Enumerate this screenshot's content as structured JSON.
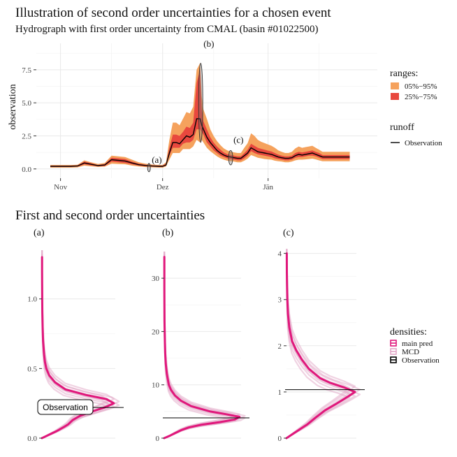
{
  "title": "Illustration of second order uncertainties for a chosen event",
  "subtitle": "Hydrograph with first order uncertainty from CMAL (basin #01022500)",
  "section_title": "First and second order uncertainties",
  "colors": {
    "q05_95": "#F5A25D",
    "q25_75": "#E8483E",
    "observation": "#000000",
    "main_pred": "#E0177B",
    "mcd": "#E2A6C6"
  },
  "chart_data": [
    {
      "type": "area",
      "name": "hydrograph",
      "ylabel": "observation",
      "xlim": [
        0,
        92
      ],
      "ylim": [
        -0.7,
        9.5
      ],
      "yticks": [
        0.0,
        2.5,
        5.0,
        7.5
      ],
      "ytick_labels": [
        "0.0",
        "2.5",
        "5.0",
        "7.5"
      ],
      "xticks": [
        {
          "x": 3,
          "label": "Nov"
        },
        {
          "x": 33,
          "label": "Dez"
        },
        {
          "x": 64,
          "label": "Jän"
        }
      ],
      "legend": {
        "ranges_title": "ranges:",
        "ranges": [
          {
            "label": "05%−95%",
            "color": "#F5A25D"
          },
          {
            "label": "25%−75%",
            "color": "#E8483E"
          }
        ],
        "runoff_title": "runoff",
        "runoff": [
          {
            "label": "Observation",
            "color": "#000000"
          }
        ]
      },
      "annotations": [
        {
          "label": "(a)",
          "x": 29.5,
          "y": 0.1
        },
        {
          "label": "(b)",
          "x": 44,
          "y": 5.2
        },
        {
          "label": "(c)",
          "x": 53,
          "y": 0.85
        }
      ],
      "series": {
        "x": [
          0,
          2,
          4,
          6,
          8,
          10,
          12,
          14,
          16,
          18,
          20,
          22,
          24,
          26,
          28,
          30,
          32,
          33,
          34,
          35,
          36,
          37,
          38,
          39,
          40,
          41,
          42,
          43,
          44,
          44.5,
          45,
          46,
          47,
          48,
          49,
          50,
          51,
          52,
          53,
          54,
          55,
          56,
          57,
          58,
          59,
          60,
          61,
          62,
          63,
          64,
          65,
          66,
          67,
          68,
          69,
          70,
          71,
          72,
          73,
          74,
          75,
          76,
          77,
          78,
          79,
          80,
          81,
          82,
          83,
          84,
          85,
          86,
          87,
          88
        ],
        "obs": [
          0.2,
          0.2,
          0.2,
          0.2,
          0.22,
          0.45,
          0.35,
          0.25,
          0.3,
          0.7,
          0.65,
          0.6,
          0.45,
          0.32,
          0.26,
          0.22,
          0.2,
          0.2,
          0.3,
          1.2,
          2.0,
          2.0,
          1.9,
          2.2,
          2.5,
          2.4,
          2.6,
          3.8,
          3.8,
          3.3,
          3.0,
          2.4,
          2.0,
          1.7,
          1.4,
          1.2,
          1.05,
          0.95,
          0.9,
          0.85,
          0.8,
          0.8,
          1.0,
          1.2,
          1.6,
          1.45,
          1.3,
          1.25,
          1.2,
          1.15,
          1.1,
          1.0,
          0.9,
          0.85,
          0.8,
          0.8,
          0.85,
          1.0,
          1.1,
          1.05,
          1.1,
          1.15,
          1.2,
          1.1,
          1.0,
          0.9,
          0.9,
          0.9,
          0.9,
          0.9,
          0.9,
          0.9,
          0.9,
          0.9
        ],
        "q25": [
          0.15,
          0.15,
          0.15,
          0.15,
          0.17,
          0.35,
          0.27,
          0.2,
          0.22,
          0.55,
          0.5,
          0.45,
          0.35,
          0.25,
          0.2,
          0.17,
          0.15,
          0.15,
          0.25,
          1.0,
          1.6,
          1.6,
          1.6,
          1.9,
          2.0,
          2.0,
          2.2,
          3.0,
          3.0,
          2.8,
          2.6,
          2.0,
          1.7,
          1.4,
          1.2,
          1.0,
          0.9,
          0.8,
          0.75,
          0.7,
          0.65,
          0.65,
          0.8,
          1.0,
          1.35,
          1.2,
          1.1,
          1.05,
          1.0,
          0.95,
          0.9,
          0.8,
          0.75,
          0.7,
          0.65,
          0.65,
          0.7,
          0.85,
          0.9,
          0.9,
          0.95,
          1.0,
          1.0,
          0.95,
          0.85,
          0.75,
          0.75,
          0.75,
          0.75,
          0.75,
          0.75,
          0.75,
          0.75,
          0.75
        ],
        "q75": [
          0.25,
          0.25,
          0.25,
          0.25,
          0.27,
          0.55,
          0.43,
          0.3,
          0.37,
          0.85,
          0.8,
          0.75,
          0.55,
          0.4,
          0.32,
          0.27,
          0.25,
          0.25,
          0.4,
          1.6,
          2.6,
          2.6,
          2.5,
          2.8,
          3.2,
          3.1,
          3.5,
          6.5,
          7.5,
          4.5,
          3.6,
          3.0,
          2.4,
          2.0,
          1.7,
          1.45,
          1.25,
          1.12,
          1.06,
          1.0,
          0.95,
          0.95,
          1.2,
          1.45,
          1.9,
          1.75,
          1.6,
          1.52,
          1.45,
          1.38,
          1.32,
          1.2,
          1.08,
          1.0,
          0.95,
          0.95,
          1.0,
          1.2,
          1.3,
          1.25,
          1.3,
          1.35,
          1.4,
          1.3,
          1.2,
          1.05,
          1.05,
          1.05,
          1.05,
          1.05,
          1.05,
          1.05,
          1.05,
          1.05
        ],
        "q05": [
          0.1,
          0.1,
          0.1,
          0.1,
          0.12,
          0.25,
          0.2,
          0.15,
          0.17,
          0.4,
          0.37,
          0.35,
          0.25,
          0.18,
          0.14,
          0.12,
          0.1,
          0.1,
          0.18,
          0.7,
          1.2,
          1.2,
          1.2,
          1.5,
          1.5,
          1.5,
          1.7,
          2.2,
          2.0,
          2.2,
          2.0,
          1.6,
          1.35,
          1.15,
          0.95,
          0.8,
          0.7,
          0.62,
          0.58,
          0.55,
          0.5,
          0.5,
          0.62,
          0.78,
          1.05,
          0.95,
          0.85,
          0.8,
          0.75,
          0.72,
          0.7,
          0.62,
          0.58,
          0.55,
          0.5,
          0.5,
          0.55,
          0.65,
          0.7,
          0.7,
          0.72,
          0.75,
          0.78,
          0.72,
          0.65,
          0.58,
          0.58,
          0.58,
          0.58,
          0.58,
          0.58,
          0.58,
          0.58,
          0.58
        ],
        "q95": [
          0.3,
          0.3,
          0.3,
          0.3,
          0.32,
          0.65,
          0.5,
          0.38,
          0.45,
          1.0,
          0.95,
          0.9,
          0.7,
          0.5,
          0.4,
          0.33,
          0.3,
          0.3,
          0.5,
          2.2,
          3.5,
          3.5,
          3.3,
          3.8,
          4.3,
          4.2,
          4.7,
          7.5,
          8.0,
          5.5,
          4.5,
          3.8,
          3.0,
          2.5,
          2.1,
          1.8,
          1.55,
          1.4,
          1.32,
          1.25,
          1.2,
          1.2,
          1.6,
          1.95,
          2.7,
          2.5,
          2.2,
          2.05,
          1.95,
          1.85,
          1.75,
          1.6,
          1.4,
          1.3,
          1.2,
          1.2,
          1.3,
          1.55,
          1.7,
          1.6,
          1.65,
          1.7,
          1.75,
          1.6,
          1.45,
          1.3,
          1.3,
          1.3,
          1.3,
          1.3,
          1.3,
          1.3,
          1.3,
          1.3
        ]
      }
    },
    {
      "type": "line",
      "name": "density-a",
      "label": "(a)",
      "ylim": [
        0,
        1.35
      ],
      "yticks": [
        0.0,
        0.5,
        1.0
      ],
      "ytick_labels": [
        "0.0",
        "0.5",
        "1.0"
      ],
      "observation": 0.22,
      "observation_label": "Observation",
      "main_pred": {
        "y": [
          0.0,
          0.02,
          0.05,
          0.08,
          0.1,
          0.13,
          0.16,
          0.19,
          0.22,
          0.25,
          0.28,
          0.31,
          0.35,
          0.4,
          0.45,
          0.5,
          0.55,
          0.6,
          0.7,
          0.8,
          0.9,
          1.0,
          1.1,
          1.2,
          1.3
        ],
        "density": [
          0.0,
          0.08,
          0.2,
          0.3,
          0.36,
          0.42,
          0.52,
          0.68,
          0.85,
          0.98,
          0.88,
          0.6,
          0.32,
          0.18,
          0.1,
          0.06,
          0.04,
          0.03,
          0.015,
          0.01,
          0.006,
          0.004,
          0.003,
          0.002,
          0.002
        ]
      },
      "mcd_count": 8
    },
    {
      "type": "line",
      "name": "density-b",
      "label": "(b)",
      "ylim": [
        0,
        35
      ],
      "yticks": [
        0,
        10,
        20,
        30
      ],
      "ytick_labels": [
        "0",
        "10",
        "20",
        "30"
      ],
      "observation": 3.8,
      "main_pred": {
        "y": [
          0,
          0.5,
          1,
          1.5,
          2,
          2.5,
          3,
          3.5,
          4,
          4.5,
          5,
          6,
          7,
          8,
          9,
          10,
          12,
          14,
          16,
          18,
          20,
          22,
          25,
          28,
          31,
          34
        ],
        "density": [
          0.0,
          0.08,
          0.15,
          0.22,
          0.32,
          0.48,
          0.72,
          0.92,
          0.98,
          0.8,
          0.6,
          0.35,
          0.22,
          0.14,
          0.09,
          0.06,
          0.035,
          0.02,
          0.013,
          0.009,
          0.006,
          0.004,
          0.003,
          0.002,
          0.002,
          0.002
        ]
      },
      "mcd_count": 8
    },
    {
      "type": "line",
      "name": "density-c",
      "label": "(c)",
      "ylim": [
        0,
        4.1
      ],
      "yticks": [
        0,
        1,
        2,
        3,
        4
      ],
      "ytick_labels": [
        "0",
        "1",
        "2",
        "3",
        "4"
      ],
      "observation": 1.05,
      "main_pred": {
        "y": [
          0.0,
          0.1,
          0.2,
          0.3,
          0.45,
          0.6,
          0.75,
          0.9,
          1.0,
          1.1,
          1.2,
          1.3,
          1.4,
          1.5,
          1.7,
          1.9,
          2.1,
          2.4,
          2.7,
          3.0,
          3.3,
          3.6,
          4.0
        ],
        "density": [
          0.0,
          0.1,
          0.2,
          0.3,
          0.42,
          0.55,
          0.72,
          0.88,
          0.98,
          0.82,
          0.62,
          0.48,
          0.4,
          0.32,
          0.22,
          0.14,
          0.08,
          0.04,
          0.02,
          0.012,
          0.008,
          0.005,
          0.004
        ]
      },
      "mcd_count": 8
    }
  ],
  "densities_legend": {
    "title": "densities:",
    "items": [
      {
        "label": "main pred",
        "color": "#E0177B"
      },
      {
        "label": "MCD",
        "color": "#E2A6C6"
      },
      {
        "label": "Observation",
        "color": "#000000"
      }
    ]
  }
}
